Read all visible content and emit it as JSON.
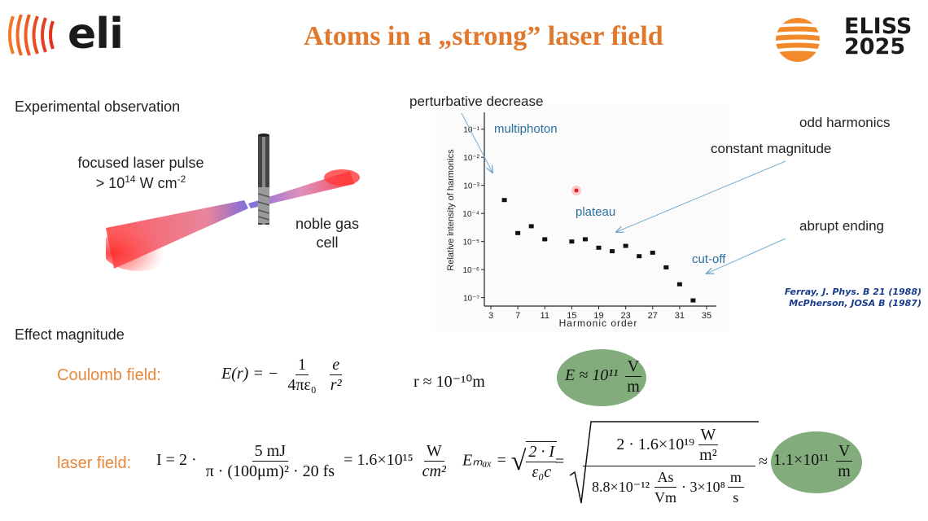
{
  "header": {
    "title": "Atoms in a „strong” laser field",
    "logo_left_text": "eli",
    "logo_right_line1": "ELISS",
    "logo_right_line2": "2025"
  },
  "left": {
    "experimental_heading": "Experimental observation",
    "pulse_line1": "focused laser pulse",
    "pulse_line2_prefix": "> 10",
    "pulse_line2_exp": "14",
    "pulse_line2_unit": " W cm",
    "pulse_line2_unit_exp": "-2",
    "gas_line1": "noble gas",
    "gas_line2": "cell",
    "effect_heading": "Effect magnitude"
  },
  "annotations": {
    "perturbative": "perturbative decrease",
    "multiphoton": "multiphoton",
    "plateau": "plateau",
    "cutoff": "cut-off",
    "odd": "odd harmonics",
    "constant": "constant magnitude",
    "abrupt": "abrupt ending",
    "ref1": "Ferray, J. Phys. B 21 (1988)",
    "ref2": "McPherson, JOSA B (1987)"
  },
  "chart_data": {
    "type": "scatter",
    "xlabel": "Harmonic order",
    "ylabel": "Relative intensity of harmonics",
    "x_ticks": [
      "3",
      "7",
      "11",
      "15",
      "19",
      "23",
      "27",
      "31",
      "35"
    ],
    "y_ticks": [
      "10⁻⁷",
      "10⁻⁶",
      "10⁻⁵",
      "10⁻⁴",
      "10⁻³",
      "10⁻²",
      "10⁻¹"
    ],
    "x_range": [
      3,
      35
    ],
    "y_log10_range": [
      -7.3,
      -0.4
    ],
    "series": [
      {
        "x": [
          5,
          7,
          9,
          11,
          15,
          17,
          19,
          21,
          23,
          25,
          27,
          29,
          31,
          33
        ],
        "y": [
          0.0003,
          2e-05,
          3.5e-05,
          1.2e-05,
          1e-05,
          1.2e-05,
          6e-06,
          4.5e-06,
          7e-06,
          3e-06,
          4e-06,
          1.2e-06,
          3e-07,
          8e-08
        ]
      }
    ]
  },
  "formulas": {
    "coulomb_label": "Coulomb field:",
    "coulomb_lhs": "E(r) = −",
    "coulomb_f1_num": "1",
    "coulomb_f1_den": "4πε₀",
    "coulomb_f2_num": "e",
    "coulomb_f2_den": "r²",
    "r_value": "r ≈ 10⁻¹⁰m",
    "E_result_prefix": "E ≈ 10¹¹",
    "E_result_num": "V",
    "E_result_den": "m",
    "laser_label": "laser field:",
    "I_lhs": "I = 2 ·",
    "I_num": "5 mJ",
    "I_den": "π · (100μm)² · 20 fs",
    "I_eq": "= 1.6×10¹⁵",
    "I_unit_num": "W",
    "I_unit_den": "cm²",
    "Emax_lhs": "Eₘₐₓ =",
    "Emax_sqrt_num": "2 · I",
    "Emax_sqrt_den": "ε₀c",
    "big_num": "2 · 1.6×10¹⁹",
    "big_num_unit_num": "W",
    "big_num_unit_den": "m²",
    "big_den_a": "8.8×10⁻¹²",
    "big_den_unit_num": "As",
    "big_den_unit_den": "Vm",
    "big_den_b": "· 3×10⁸",
    "big_den_unit2_num": "m",
    "big_den_unit2_den": "s",
    "approx": "≈",
    "final_prefix": "1.1×10¹¹",
    "final_num": "V",
    "final_den": "m"
  }
}
